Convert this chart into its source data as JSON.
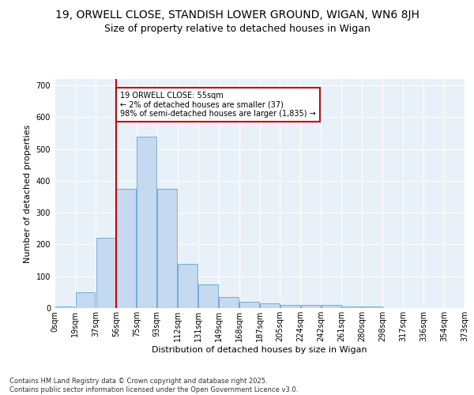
{
  "title_line1": "19, ORWELL CLOSE, STANDISH LOWER GROUND, WIGAN, WN6 8JH",
  "title_line2": "Size of property relative to detached houses in Wigan",
  "xlabel": "Distribution of detached houses by size in Wigan",
  "ylabel": "Number of detached properties",
  "bin_labels": [
    "0sqm",
    "19sqm",
    "37sqm",
    "56sqm",
    "75sqm",
    "93sqm",
    "112sqm",
    "131sqm",
    "149sqm",
    "168sqm",
    "187sqm",
    "205sqm",
    "224sqm",
    "242sqm",
    "261sqm",
    "280sqm",
    "298sqm",
    "317sqm",
    "336sqm",
    "354sqm",
    "373sqm"
  ],
  "bar_values": [
    5,
    50,
    220,
    375,
    540,
    375,
    140,
    75,
    35,
    20,
    15,
    10,
    10,
    10,
    5,
    5,
    0,
    0,
    0,
    0
  ],
  "bar_color": "#c5d9f0",
  "bar_edge_color": "#6baed6",
  "vline_color": "#cc0000",
  "annotation_text": "19 ORWELL CLOSE: 55sqm\n← 2% of detached houses are smaller (37)\n98% of semi-detached houses are larger (1,835) →",
  "annotation_box_color": "#ffffff",
  "annotation_box_edge": "#cc0000",
  "ylim": [
    0,
    720
  ],
  "yticks": [
    0,
    100,
    200,
    300,
    400,
    500,
    600,
    700
  ],
  "bg_color": "#e8f0f8",
  "footer_text": "Contains HM Land Registry data © Crown copyright and database right 2025.\nContains public sector information licensed under the Open Government Licence v3.0.",
  "title_fontsize": 10,
  "subtitle_fontsize": 9,
  "xlabel_fontsize": 8,
  "ylabel_fontsize": 8,
  "tick_fontsize": 7,
  "footer_fontsize": 6
}
